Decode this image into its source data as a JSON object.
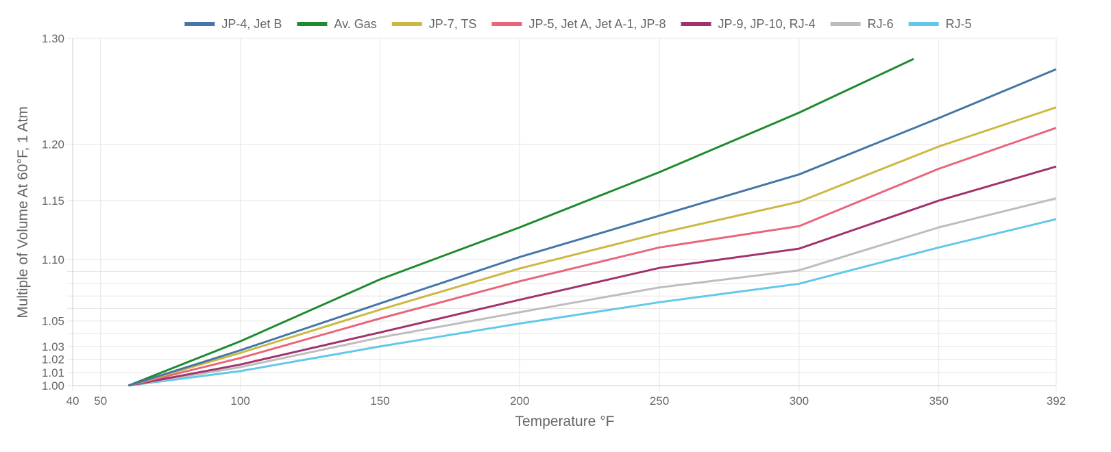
{
  "chart_data": {
    "type": "line",
    "title": "",
    "xlabel": "Temperature °F",
    "ylabel": "Multiple of Volume At 60°F, 1 Atm",
    "xscale": "linear",
    "yscale": "log",
    "xlim": [
      40,
      392
    ],
    "ylim": [
      1.0,
      1.3
    ],
    "x_ticks": [
      40,
      50,
      100,
      150,
      200,
      250,
      300,
      350,
      392
    ],
    "y_ticks": [
      1.0,
      1.01,
      1.02,
      1.03,
      1.05,
      1.1,
      1.15,
      1.2,
      1.3
    ],
    "y_minor_grid": [
      1.04,
      1.06,
      1.07,
      1.08,
      1.09
    ],
    "grid": true,
    "legend_position": "top-center",
    "series": [
      {
        "name": "JP-4, Jet B",
        "color": "#4476A8",
        "x": [
          60,
          100,
          150,
          200,
          250,
          300,
          350,
          392
        ],
        "y": [
          1.0,
          1.027,
          1.064,
          1.102,
          1.137,
          1.173,
          1.224,
          1.27
        ]
      },
      {
        "name": "Av. Gas",
        "color": "#1F8A2E",
        "x": [
          60,
          100,
          150,
          200,
          250,
          300,
          341
        ],
        "y": [
          1.0,
          1.034,
          1.0835,
          1.127,
          1.175,
          1.229,
          1.28
        ]
      },
      {
        "name": "JP-7, TS",
        "color": "#CDB843",
        "x": [
          60,
          100,
          150,
          200,
          250,
          300,
          350,
          392
        ],
        "y": [
          1.0,
          1.025,
          1.059,
          1.0925,
          1.122,
          1.149,
          1.198,
          1.234
        ]
      },
      {
        "name": "JP-5, Jet A, Jet A-1, JP-8",
        "color": "#E9667A",
        "x": [
          60,
          100,
          150,
          200,
          250,
          300,
          350,
          392
        ],
        "y": [
          1.0,
          1.021,
          1.052,
          1.082,
          1.11,
          1.128,
          1.178,
          1.215
        ]
      },
      {
        "name": "JP-9, JP-10, RJ-4",
        "color": "#A0336E",
        "x": [
          60,
          100,
          150,
          200,
          250,
          300,
          350,
          392
        ],
        "y": [
          1.0,
          1.016,
          1.041,
          1.067,
          1.093,
          1.109,
          1.15,
          1.18
        ]
      },
      {
        "name": "RJ-6",
        "color": "#BDBDBD",
        "x": [
          60,
          100,
          150,
          200,
          250,
          300,
          350,
          392
        ],
        "y": [
          1.0,
          1.014,
          1.037,
          1.057,
          1.077,
          1.091,
          1.127,
          1.152
        ]
      },
      {
        "name": "RJ-5",
        "color": "#62C8EB",
        "x": [
          60,
          100,
          150,
          200,
          250,
          300,
          350,
          392
        ],
        "y": [
          1.0,
          1.011,
          1.03,
          1.048,
          1.065,
          1.08,
          1.11,
          1.134
        ]
      }
    ]
  }
}
